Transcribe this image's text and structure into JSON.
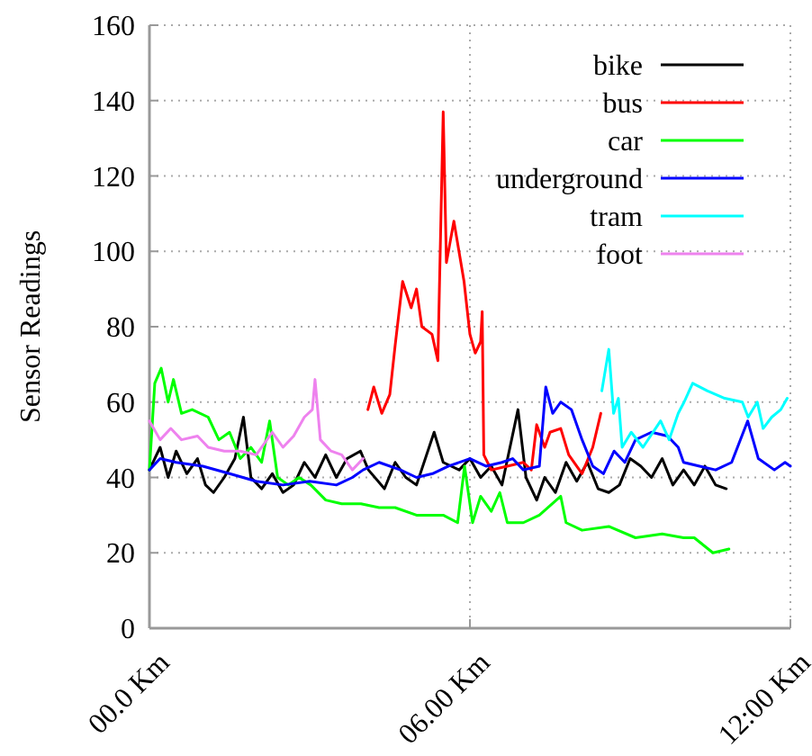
{
  "chart_data": {
    "type": "line",
    "ylabel": "Sensor Readings",
    "xlim": [
      0,
      12
    ],
    "ylim": [
      0,
      160
    ],
    "xticks": [
      {
        "value": 0,
        "label": "00.0 Km"
      },
      {
        "value": 6,
        "label": "06.00 Km"
      },
      {
        "value": 12,
        "label": "12:00 Km"
      }
    ],
    "yticks": [
      0,
      20,
      40,
      60,
      80,
      100,
      120,
      140,
      160
    ],
    "grid": true,
    "legend": "top right",
    "marker": "none",
    "line_style": "solid",
    "series": [
      {
        "name": "bike",
        "color": "#000000",
        "x": [
          0,
          0.2,
          0.35,
          0.5,
          0.7,
          0.9,
          1.05,
          1.2,
          1.4,
          1.6,
          1.76,
          1.9,
          2.1,
          2.3,
          2.5,
          2.7,
          2.9,
          3.1,
          3.3,
          3.5,
          3.7,
          3.95,
          4.1,
          4.4,
          4.6,
          4.8,
          5,
          5.33,
          5.5,
          5.8,
          6,
          6.2,
          6.4,
          6.6,
          6.9,
          7.05,
          7.25,
          7.4,
          7.6,
          7.8,
          8,
          8.2,
          8.4,
          8.6,
          8.8,
          9,
          9.2,
          9.4,
          9.6,
          9.8,
          10,
          10.2,
          10.4,
          10.6,
          10.8
        ],
        "values": [
          42,
          48,
          40,
          47,
          41,
          45,
          38,
          36,
          40,
          45,
          56,
          40,
          37,
          41,
          36,
          38,
          44,
          40,
          46,
          40,
          45,
          47,
          42,
          37,
          44,
          40,
          38,
          52,
          44,
          42,
          45,
          40,
          43,
          38,
          58,
          40,
          34,
          40,
          36,
          44,
          39,
          44,
          37,
          36,
          38,
          45,
          43,
          40,
          45,
          38,
          42,
          38,
          43,
          38,
          37
        ]
      },
      {
        "name": "bus",
        "color": "#ff0000",
        "x": [
          4.09,
          4.2,
          4.35,
          4.5,
          4.6,
          4.74,
          4.9,
          5,
          5.1,
          5.29,
          5.4,
          5.5,
          5.56,
          5.7,
          5.89,
          6,
          6.1,
          6.2,
          6.23,
          6.26,
          6.4,
          6.7,
          7,
          7.15,
          7.25,
          7.4,
          7.5,
          7.7,
          7.85,
          8.1,
          8.3,
          8.45
        ],
        "values": [
          58,
          64,
          57,
          62,
          75,
          92,
          85,
          90,
          80,
          78,
          71,
          137,
          97,
          108,
          92,
          78,
          73,
          76,
          84,
          46,
          42,
          43,
          44,
          42,
          54,
          48,
          52,
          53,
          46,
          41,
          48,
          57
        ]
      },
      {
        "name": "car",
        "color": "#00ff00",
        "x": [
          0,
          0.1,
          0.22,
          0.35,
          0.45,
          0.6,
          0.8,
          1.1,
          1.3,
          1.5,
          1.7,
          1.9,
          2.1,
          2.25,
          2.4,
          2.6,
          2.8,
          3.02,
          3.3,
          3.6,
          3.96,
          4.3,
          4.6,
          5,
          5.5,
          5.77,
          5.9,
          6.05,
          6.2,
          6.4,
          6.56,
          6.7,
          7,
          7.3,
          7.7,
          7.8,
          8.1,
          8.6,
          9.1,
          9.6,
          10,
          10.2,
          10.55,
          10.85
        ],
        "values": [
          42,
          65,
          69,
          60,
          66,
          57,
          58,
          56,
          50,
          52,
          45,
          48,
          44,
          55,
          40,
          38,
          40,
          38,
          34,
          33,
          33,
          32,
          32,
          30,
          30,
          28,
          43,
          28,
          35,
          31,
          36,
          28,
          28,
          30,
          35,
          28,
          26,
          27,
          24,
          25,
          24,
          24,
          20,
          21
        ]
      },
      {
        "name": "underground",
        "color": "#0000ff",
        "x": [
          0,
          0.2,
          0.5,
          1,
          1.5,
          2,
          2.5,
          3,
          3.5,
          3.8,
          4,
          4.3,
          4.7,
          5,
          5.3,
          5.6,
          6,
          6.3,
          6.6,
          6.8,
          7,
          7.3,
          7.42,
          7.55,
          7.7,
          7.9,
          8.1,
          8.3,
          8.5,
          8.7,
          8.9,
          9.1,
          9.4,
          9.7,
          9.9,
          10,
          10.3,
          10.6,
          10.9,
          11.2,
          11.4,
          11.7,
          11.9,
          12
        ],
        "values": [
          42,
          45,
          44,
          43,
          41,
          39,
          38,
          39,
          38,
          40,
          42,
          44,
          42,
          40,
          41,
          43,
          45,
          43,
          44,
          45,
          42,
          43,
          64,
          57,
          60,
          58,
          50,
          43,
          41,
          47,
          44,
          50,
          52,
          51,
          48,
          44,
          43,
          42,
          44,
          55,
          45,
          42,
          44,
          43
        ]
      },
      {
        "name": "tram",
        "color": "#00ffff",
        "x": [
          8.47,
          8.6,
          8.69,
          8.78,
          8.85,
          9.02,
          9.24,
          9.57,
          9.73,
          9.9,
          10.01,
          10.17,
          10.44,
          10.77,
          11.1,
          11.21,
          11.38,
          11.49,
          11.65,
          11.82,
          11.94
        ],
        "values": [
          63,
          74,
          57,
          61,
          48,
          52,
          48,
          55,
          50,
          57,
          60,
          65,
          63,
          61,
          60,
          56,
          60,
          53,
          56,
          58,
          61
        ]
      },
      {
        "name": "foot",
        "color": "#ee82ee",
        "x": [
          0,
          0.2,
          0.4,
          0.6,
          0.9,
          1.1,
          1.4,
          1.7,
          2,
          2.3,
          2.5,
          2.7,
          2.9,
          3.05,
          3.1,
          3.2,
          3.4,
          3.6,
          3.8,
          4
        ],
        "values": [
          55,
          50,
          53,
          50,
          51,
          48,
          47,
          47,
          46,
          52,
          48,
          51,
          56,
          58,
          66,
          50,
          47,
          46,
          42,
          45
        ]
      }
    ]
  }
}
